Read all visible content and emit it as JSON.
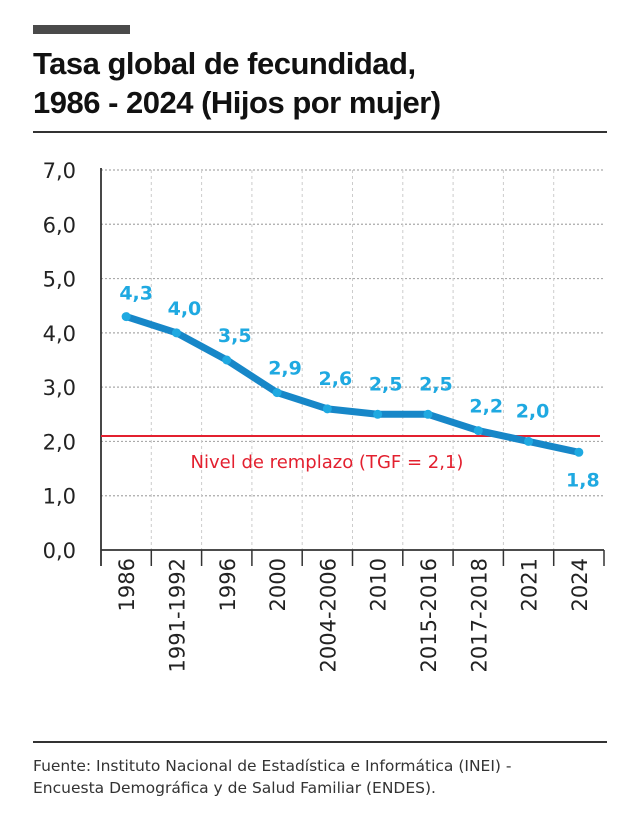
{
  "header": {
    "title_line1": "Tasa global de fecundidad,",
    "title_line2": "1986 - 2024 (Hijos por mujer)"
  },
  "chart_data": {
    "type": "line",
    "title": "Tasa global de fecundidad, 1986 - 2024 (Hijos por mujer)",
    "categories": [
      "1986",
      "1991-1992",
      "1996",
      "2000",
      "2004-2006",
      "2010",
      "2015-2016",
      "2017-2018",
      "2021",
      "2024"
    ],
    "values": [
      4.3,
      4.0,
      3.5,
      2.9,
      2.6,
      2.5,
      2.5,
      2.2,
      2.0,
      1.8
    ],
    "value_labels": [
      "4,3",
      "4,0",
      "3,5",
      "2,9",
      "2,6",
      "2,5",
      "2,5",
      "2,2",
      "2,0",
      "1,8"
    ],
    "ylim": [
      0,
      7
    ],
    "yticks": [
      0,
      1,
      2,
      3,
      4,
      5,
      6,
      7
    ],
    "ytick_labels": [
      "0,0",
      "1,0",
      "2,0",
      "3,0",
      "4,0",
      "5,0",
      "6,0",
      "7,0"
    ],
    "grid": true,
    "reference_line": {
      "value": 2.1,
      "label": "Nivel de remplazo (TGF = 2,1)",
      "color": "#e3202f"
    },
    "colors": {
      "line": "#1787c8",
      "labels": "#1fa9e1"
    }
  },
  "footer": {
    "source_line1": "Fuente: Instituto Nacional de Estadística e Informática (INEI) -",
    "source_line2": "Encuesta Demográfica y de Salud Familiar (ENDES)."
  }
}
